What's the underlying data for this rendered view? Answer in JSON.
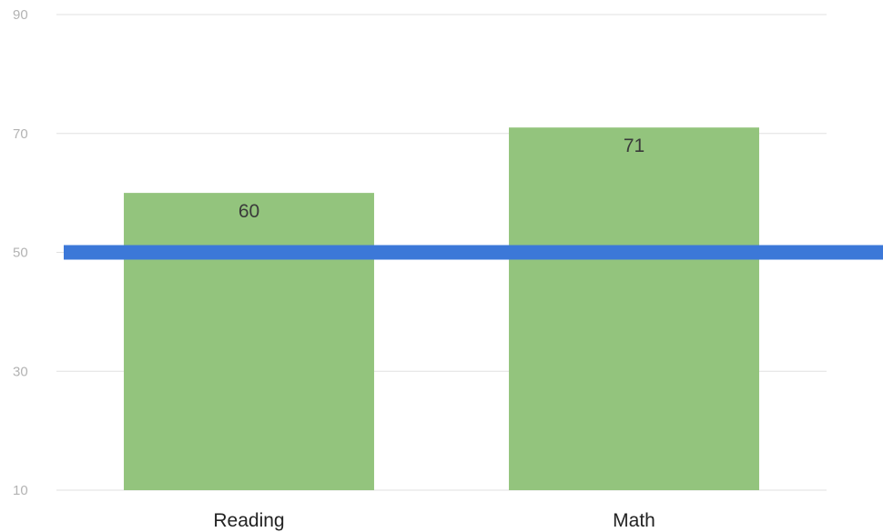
{
  "chart_data": {
    "type": "bar",
    "categories": [
      "Reading",
      "Math"
    ],
    "values": [
      60,
      71
    ],
    "data_labels": [
      "60",
      "71"
    ],
    "ylim": [
      10,
      90
    ],
    "yticks": [
      10,
      30,
      50,
      70,
      90
    ],
    "ytick_labels": [
      "10",
      "30",
      "50",
      "70",
      "90"
    ],
    "grid": true,
    "reference_line": {
      "value": 50
    },
    "colors": {
      "bar": "#93c47d",
      "reference_line": "#3c78d8",
      "grid": "#e0e0e0",
      "tick_label": "#b3b3b3"
    }
  }
}
